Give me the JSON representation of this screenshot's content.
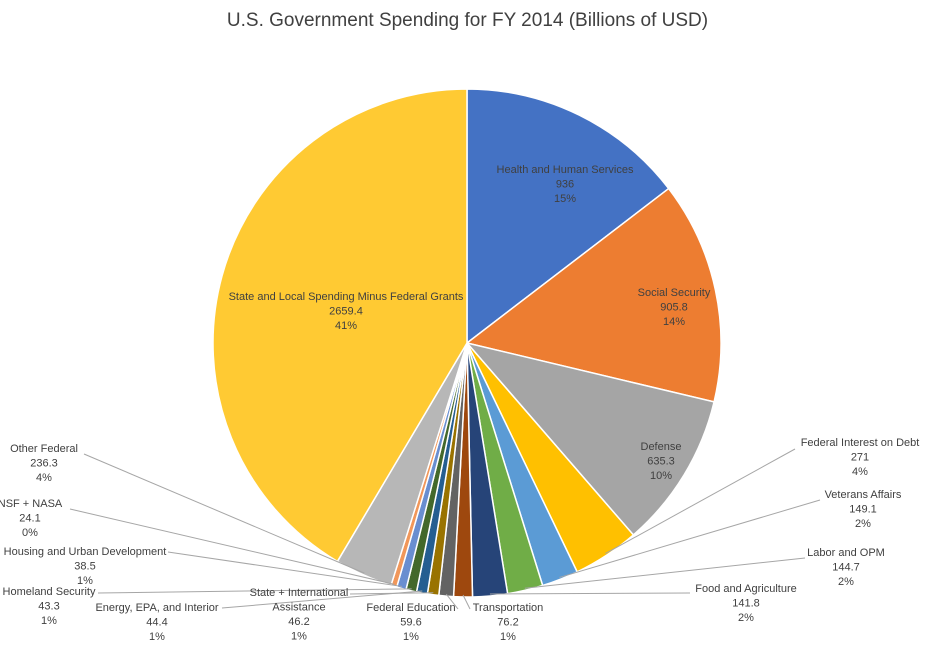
{
  "chart_data": {
    "type": "pie",
    "title": "U.S. Government Spending for FY 2014 (Billions of USD)",
    "start_angle_deg": 0,
    "direction": "clockwise",
    "slices": [
      {
        "label": "Health and Human Services",
        "value": 936,
        "value_label": "936",
        "percent_label": "15%",
        "color": "#4472c4"
      },
      {
        "label": "Social Security",
        "value": 905.8,
        "value_label": "905.8",
        "percent_label": "14%",
        "color": "#ed7d31"
      },
      {
        "label": "Defense",
        "value": 635.3,
        "value_label": "635.3",
        "percent_label": "10%",
        "color": "#a5a5a5"
      },
      {
        "label": "Federal Interest on Debt",
        "value": 271,
        "value_label": "271",
        "percent_label": "4%",
        "color": "#ffc000"
      },
      {
        "label": "Veterans Affairs",
        "value": 149.1,
        "value_label": "149.1",
        "percent_label": "2%",
        "color": "#5b9bd5"
      },
      {
        "label": "Labor and OPM",
        "value": 144.7,
        "value_label": "144.7",
        "percent_label": "2%",
        "color": "#70ad47"
      },
      {
        "label": "Food and Agriculture",
        "value": 141.8,
        "value_label": "141.8",
        "percent_label": "2%",
        "color": "#264478"
      },
      {
        "label": "Transportation",
        "value": 76.2,
        "value_label": "76.2",
        "percent_label": "1%",
        "color": "#9e480e"
      },
      {
        "label": "Federal Education",
        "value": 59.6,
        "value_label": "59.6",
        "percent_label": "1%",
        "color": "#636363"
      },
      {
        "label": "State + International Assistance",
        "value": 46.2,
        "value_label": "46.2",
        "percent_label": "1%",
        "color": "#997300"
      },
      {
        "label": "Energy, EPA, and Interior",
        "value": 44.4,
        "value_label": "44.4",
        "percent_label": "1%",
        "color": "#255e91"
      },
      {
        "label": "Homeland Security",
        "value": 43.3,
        "value_label": "43.3",
        "percent_label": "1%",
        "color": "#43682b"
      },
      {
        "label": "Housing and Urban Development",
        "value": 38.5,
        "value_label": "38.5",
        "percent_label": "1%",
        "color": "#698ed0"
      },
      {
        "label": "NSF + NASA",
        "value": 24.1,
        "value_label": "24.1",
        "percent_label": "0%",
        "color": "#f1975a"
      },
      {
        "label": "Other Federal",
        "value": 236.3,
        "value_label": "236.3",
        "percent_label": "4%",
        "color": "#b7b7b7"
      },
      {
        "label": "State and Local Spending Minus Federal Grants",
        "value": 2659.4,
        "value_label": "2659.4",
        "percent_label": "41%",
        "color": "#ffca33"
      }
    ],
    "legend": "none"
  }
}
